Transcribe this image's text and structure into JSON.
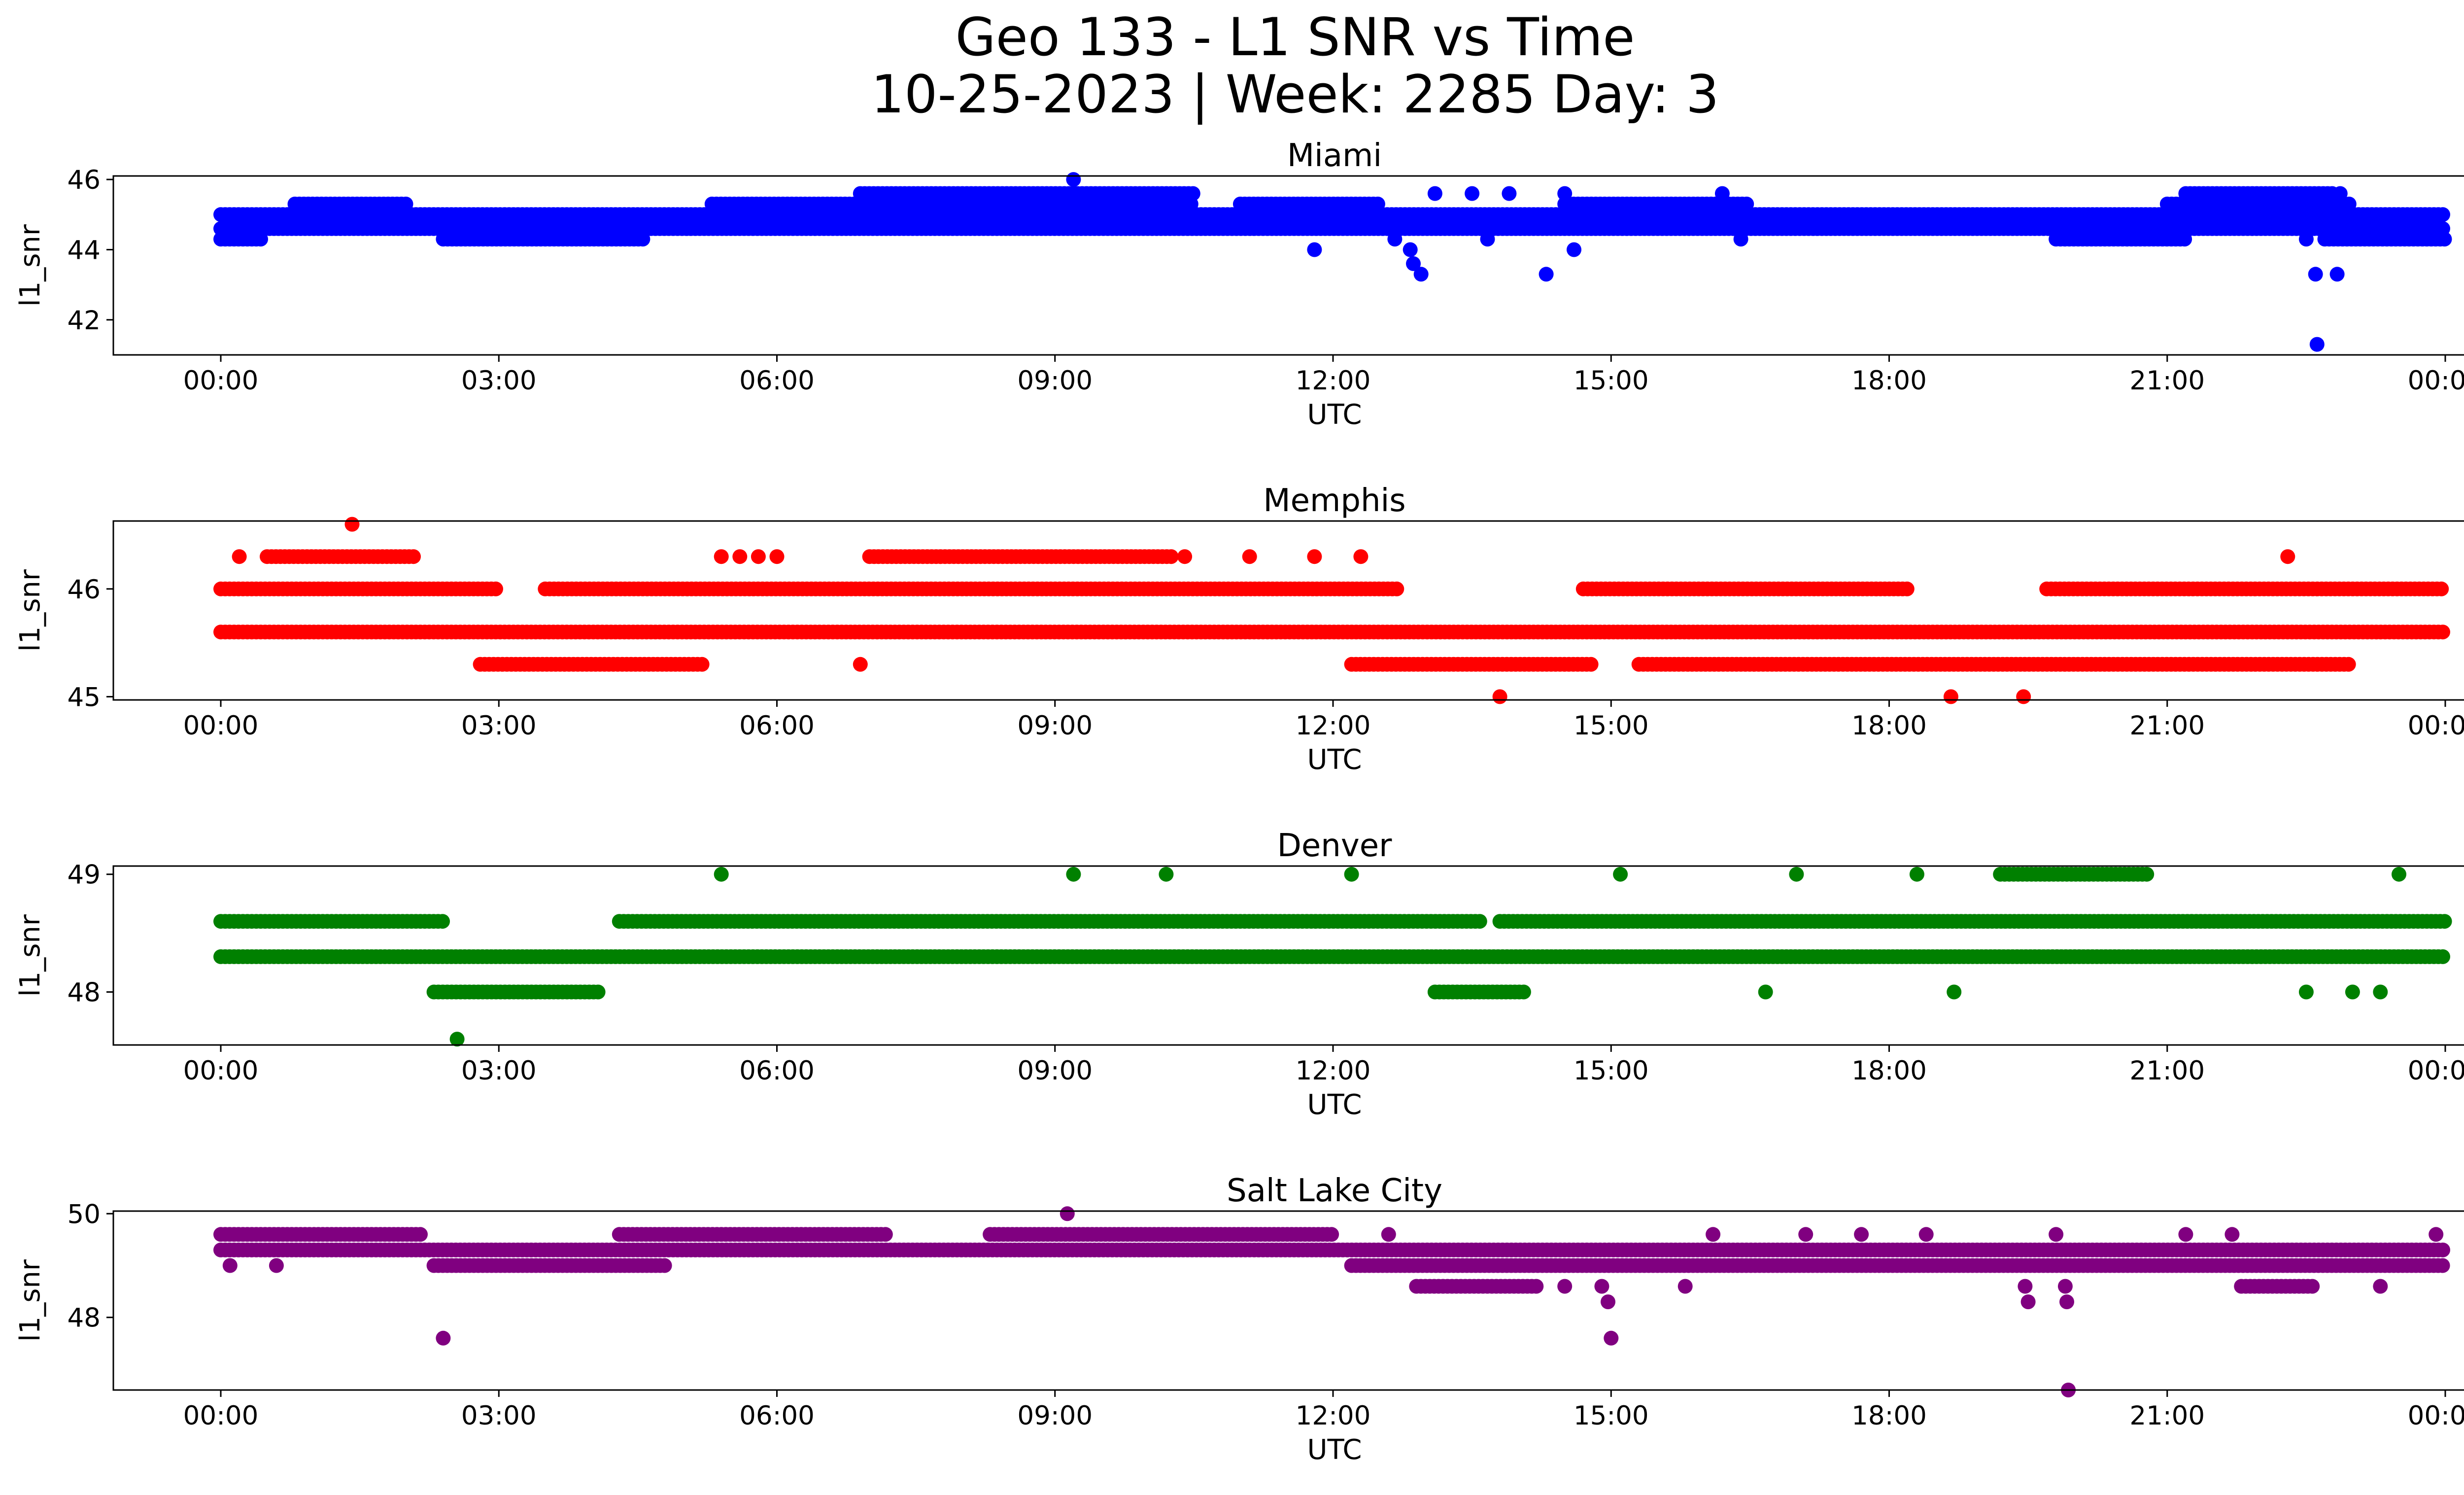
{
  "title_line1": "Geo 133 - L1 SNR vs Time",
  "title_line2": "10-25-2023 | Week: 2285 Day: 3",
  "chart_data": [
    {
      "type": "scatter",
      "title": "Miami",
      "xlabel": "UTC",
      "ylabel": "l1_snr",
      "color": "#0000ff",
      "xlim": [
        "00:00",
        "24:00"
      ],
      "x_ticks": [
        "00:00",
        "03:00",
        "06:00",
        "09:00",
        "12:00",
        "15:00",
        "18:00",
        "21:00",
        "00:00"
      ],
      "ylim": [
        41.0,
        46.1
      ],
      "y_ticks": [
        42,
        44,
        46
      ],
      "bands": [
        {
          "y": 44.3,
          "segments": [
            [
              0.0,
              0.45
            ],
            [
              2.4,
              4.6
            ],
            [
              19.8,
              21.2
            ],
            [
              22.7,
              24.0
            ]
          ]
        },
        {
          "y": 44.6,
          "segments": [
            [
              0.0,
              24.0
            ]
          ]
        },
        {
          "y": 45.0,
          "segments": [
            [
              0.0,
              24.0
            ]
          ]
        },
        {
          "y": 45.3,
          "segments": [
            [
              0.8,
              2.0
            ],
            [
              5.3,
              10.5
            ],
            [
              11.0,
              12.5
            ],
            [
              14.5,
              16.5
            ],
            [
              21.0,
              23.0
            ]
          ]
        },
        {
          "y": 45.6,
          "segments": [
            [
              6.9,
              10.5
            ],
            [
              21.2,
              22.8
            ]
          ]
        }
      ],
      "points": [
        {
          "x": "09:12",
          "y": 46.0
        },
        {
          "x": "09:36",
          "y": 45.3
        },
        {
          "x": "11:48",
          "y": 44.0
        },
        {
          "x": "12:40",
          "y": 44.3
        },
        {
          "x": "12:50",
          "y": 44.0
        },
        {
          "x": "12:52",
          "y": 43.6
        },
        {
          "x": "12:57",
          "y": 43.3
        },
        {
          "x": "13:06",
          "y": 45.6
        },
        {
          "x": "13:30",
          "y": 45.6
        },
        {
          "x": "13:40",
          "y": 44.3
        },
        {
          "x": "13:54",
          "y": 45.6
        },
        {
          "x": "14:18",
          "y": 43.3
        },
        {
          "x": "14:30",
          "y": 45.6
        },
        {
          "x": "14:36",
          "y": 44.0
        },
        {
          "x": "16:12",
          "y": 45.6
        },
        {
          "x": "16:24",
          "y": 44.3
        },
        {
          "x": "22:30",
          "y": 44.3
        },
        {
          "x": "22:36",
          "y": 43.3
        },
        {
          "x": "22:37",
          "y": 41.3
        },
        {
          "x": "22:50",
          "y": 43.3
        },
        {
          "x": "22:52",
          "y": 45.6
        }
      ]
    },
    {
      "type": "scatter",
      "title": "Memphis",
      "xlabel": "UTC",
      "ylabel": "l1_snr",
      "color": "#ff0000",
      "xlim": [
        "00:00",
        "24:00"
      ],
      "x_ticks": [
        "00:00",
        "03:00",
        "06:00",
        "09:00",
        "12:00",
        "15:00",
        "18:00",
        "21:00",
        "00:00"
      ],
      "ylim": [
        44.97,
        46.63
      ],
      "y_ticks": [
        45,
        46
      ],
      "bands": [
        {
          "y": 45.3,
          "segments": [
            [
              2.8,
              5.2
            ],
            [
              12.2,
              14.8
            ],
            [
              15.3,
              23.0
            ]
          ]
        },
        {
          "y": 45.6,
          "segments": [
            [
              0.0,
              24.0
            ]
          ]
        },
        {
          "y": 46.0,
          "segments": [
            [
              0.0,
              3.0
            ],
            [
              3.5,
              12.7
            ],
            [
              14.7,
              18.2
            ],
            [
              19.7,
              24.0
            ]
          ]
        },
        {
          "y": 46.3,
          "segments": [
            [
              0.5,
              2.1
            ],
            [
              7.0,
              10.3
            ]
          ]
        }
      ],
      "points": [
        {
          "x": "00:12",
          "y": 46.3
        },
        {
          "x": "01:25",
          "y": 46.6
        },
        {
          "x": "05:24",
          "y": 46.3
        },
        {
          "x": "05:36",
          "y": 46.3
        },
        {
          "x": "05:48",
          "y": 46.3
        },
        {
          "x": "06:00",
          "y": 46.3
        },
        {
          "x": "06:54",
          "y": 45.3
        },
        {
          "x": "10:24",
          "y": 46.3
        },
        {
          "x": "11:06",
          "y": 46.3
        },
        {
          "x": "11:48",
          "y": 46.3
        },
        {
          "x": "12:18",
          "y": 46.3
        },
        {
          "x": "13:48",
          "y": 45.0
        },
        {
          "x": "18:40",
          "y": 45.0
        },
        {
          "x": "19:27",
          "y": 45.0
        },
        {
          "x": "22:18",
          "y": 46.3
        }
      ]
    },
    {
      "type": "scatter",
      "title": "Denver",
      "xlabel": "UTC",
      "ylabel": "l1_snr",
      "color": "#008000",
      "xlim": [
        "00:00",
        "24:00"
      ],
      "x_ticks": [
        "00:00",
        "03:00",
        "06:00",
        "09:00",
        "12:00",
        "15:00",
        "18:00",
        "21:00",
        "00:00"
      ],
      "ylim": [
        47.55,
        49.07
      ],
      "y_ticks": [
        48,
        49
      ],
      "bands": [
        {
          "y": 48.0,
          "segments": [
            [
              2.3,
              4.1
            ],
            [
              13.1,
              14.1
            ]
          ]
        },
        {
          "y": 48.3,
          "segments": [
            [
              0.0,
              24.0
            ]
          ]
        },
        {
          "y": 48.6,
          "segments": [
            [
              0.0,
              2.4
            ],
            [
              4.3,
              13.6
            ],
            [
              13.8,
              24.0
            ]
          ]
        },
        {
          "y": 49.0,
          "segments": [
            [
              19.2,
              20.8
            ]
          ]
        }
      ],
      "points": [
        {
          "x": "02:33",
          "y": 47.6
        },
        {
          "x": "05:24",
          "y": 49.0
        },
        {
          "x": "09:12",
          "y": 49.0
        },
        {
          "x": "10:12",
          "y": 49.0
        },
        {
          "x": "12:12",
          "y": 49.0
        },
        {
          "x": "15:06",
          "y": 49.0
        },
        {
          "x": "17:00",
          "y": 49.0
        },
        {
          "x": "18:18",
          "y": 49.0
        },
        {
          "x": "23:30",
          "y": 49.0
        },
        {
          "x": "16:40",
          "y": 48.0
        },
        {
          "x": "18:42",
          "y": 48.0
        },
        {
          "x": "22:30",
          "y": 48.0
        },
        {
          "x": "23:00",
          "y": 48.0
        },
        {
          "x": "23:18",
          "y": 48.0
        }
      ]
    },
    {
      "type": "scatter",
      "title": "Salt Lake City",
      "xlabel": "UTC",
      "ylabel": "l1_snr",
      "color": "#800080",
      "xlim": [
        "00:00",
        "24:00"
      ],
      "x_ticks": [
        "00:00",
        "03:00",
        "06:00",
        "09:00",
        "12:00",
        "15:00",
        "18:00",
        "21:00",
        "00:00"
      ],
      "ylim": [
        46.6,
        50.05
      ],
      "y_ticks": [
        48,
        50
      ],
      "bands": [
        {
          "y": 48.6,
          "segments": [
            [
              12.9,
              14.2
            ],
            [
              21.8,
              22.6
            ]
          ]
        },
        {
          "y": 49.0,
          "segments": [
            [
              2.3,
              4.8
            ],
            [
              12.2,
              24.0
            ]
          ]
        },
        {
          "y": 49.3,
          "segments": [
            [
              0.0,
              24.0
            ]
          ]
        },
        {
          "y": 49.6,
          "segments": [
            [
              0.0,
              2.2
            ],
            [
              4.3,
              7.2
            ],
            [
              8.3,
              12.0
            ]
          ]
        }
      ],
      "points": [
        {
          "x": "00:06",
          "y": 49.0
        },
        {
          "x": "00:36",
          "y": 49.0
        },
        {
          "x": "02:24",
          "y": 47.6
        },
        {
          "x": "09:08",
          "y": 50.0
        },
        {
          "x": "12:36",
          "y": 49.6
        },
        {
          "x": "14:30",
          "y": 48.6
        },
        {
          "x": "14:54",
          "y": 48.6
        },
        {
          "x": "14:58",
          "y": 48.3
        },
        {
          "x": "15:00",
          "y": 47.6
        },
        {
          "x": "15:48",
          "y": 48.6
        },
        {
          "x": "16:06",
          "y": 49.6
        },
        {
          "x": "17:06",
          "y": 49.6
        },
        {
          "x": "17:42",
          "y": 49.6
        },
        {
          "x": "18:24",
          "y": 49.6
        },
        {
          "x": "19:28",
          "y": 48.6
        },
        {
          "x": "19:30",
          "y": 48.3
        },
        {
          "x": "19:48",
          "y": 49.6
        },
        {
          "x": "19:54",
          "y": 48.6
        },
        {
          "x": "19:55",
          "y": 48.3
        },
        {
          "x": "19:56",
          "y": 46.6
        },
        {
          "x": "21:12",
          "y": 49.6
        },
        {
          "x": "21:42",
          "y": 49.6
        },
        {
          "x": "23:18",
          "y": 48.6
        },
        {
          "x": "23:54",
          "y": 49.6
        }
      ]
    }
  ]
}
